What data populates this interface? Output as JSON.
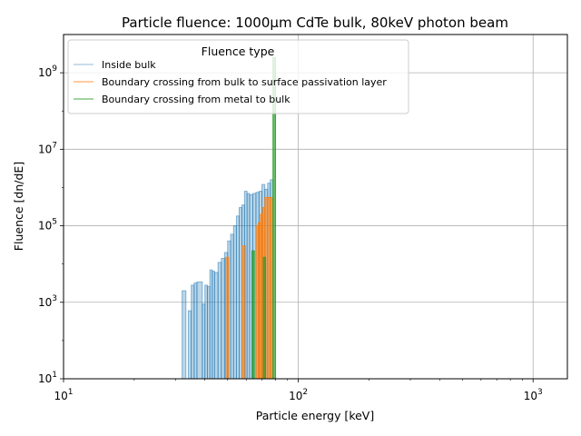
{
  "chart_data": {
    "type": "histogram",
    "title": "Particle fluence: 1000μm CdTe bulk, 80keV photon beam",
    "xlabel": "Particle energy [keV]",
    "ylabel": "Fluence [dn/dE]",
    "xscale": "log",
    "yscale": "log",
    "xlim": [
      10,
      1400
    ],
    "ylim": [
      10,
      10000000000
    ],
    "grid": true,
    "x_ticks": [
      {
        "value": 10,
        "base": "10",
        "exp": "1"
      },
      {
        "value": 100,
        "base": "10",
        "exp": "2"
      },
      {
        "value": 1000,
        "base": "10",
        "exp": "3"
      }
    ],
    "y_ticks": [
      {
        "value": 10,
        "base": "10",
        "exp": "1"
      },
      {
        "value": 1000,
        "base": "10",
        "exp": "3"
      },
      {
        "value": 100000,
        "base": "10",
        "exp": "5"
      },
      {
        "value": 10000000,
        "base": "10",
        "exp": "7"
      },
      {
        "value": 1000000000,
        "base": "10",
        "exp": "9"
      }
    ],
    "legend": {
      "title": "Fluence type",
      "placement": "upper left"
    },
    "series": [
      {
        "name": "Inside bulk",
        "color": "#1f77b4",
        "fill_opacity": 0.3,
        "stroke_opacity": 0.5,
        "bins": [
          [
            32.0,
            33.2,
            2000
          ],
          [
            34.0,
            35.0,
            600
          ],
          [
            35.0,
            36.0,
            2800
          ],
          [
            36.0,
            37.0,
            3200
          ],
          [
            37.0,
            39.0,
            3400
          ],
          [
            39.0,
            40.0,
            900
          ],
          [
            40.0,
            41.0,
            2800
          ],
          [
            41.0,
            42.0,
            2600
          ],
          [
            42.0,
            43.0,
            7000
          ],
          [
            43.0,
            44.0,
            6500
          ],
          [
            44.0,
            45.5,
            6000
          ],
          [
            45.5,
            47.0,
            11000
          ],
          [
            47.0,
            48.5,
            14000
          ],
          [
            48.5,
            50.0,
            20000
          ],
          [
            50.0,
            51.5,
            40000
          ],
          [
            51.5,
            53.0,
            60000
          ],
          [
            53.0,
            54.5,
            100000
          ],
          [
            54.5,
            56.0,
            180000
          ],
          [
            56.0,
            57.5,
            300000
          ],
          [
            57.5,
            59.0,
            350000
          ],
          [
            59.0,
            60.5,
            800000
          ],
          [
            60.5,
            62.0,
            700000
          ],
          [
            62.0,
            64.0,
            650000
          ],
          [
            64.0,
            66.0,
            700000
          ],
          [
            66.0,
            68.0,
            750000
          ],
          [
            68.0,
            70.0,
            800000
          ],
          [
            70.0,
            72.0,
            1200000
          ],
          [
            72.0,
            74.0,
            900000
          ],
          [
            74.0,
            76.0,
            1300000
          ],
          [
            76.0,
            78.0,
            1600000
          ]
        ]
      },
      {
        "name": "Boundary crossing from bulk to surface passivation layer",
        "color": "#ff7f0e",
        "fill_opacity": 0.6,
        "stroke_opacity": 0.8,
        "bins": [
          [
            49.0,
            50.5,
            15000
          ],
          [
            57.5,
            59.5,
            30000
          ],
          [
            66.0,
            67.5,
            100000
          ],
          [
            67.5,
            69.0,
            120000
          ],
          [
            69.0,
            70.5,
            200000
          ],
          [
            70.5,
            72.0,
            300000
          ],
          [
            72.0,
            74.0,
            550000
          ],
          [
            74.0,
            76.0,
            550000
          ],
          [
            76.0,
            78.0,
            550000
          ]
        ]
      },
      {
        "name": "Boundary crossing from metal to bulk",
        "color": "#2ca02c",
        "fill_opacity": 0.7,
        "stroke_opacity": 0.9,
        "bins": [
          [
            63.5,
            65.0,
            22000
          ],
          [
            71.0,
            72.5,
            15000
          ],
          [
            78.0,
            80.0,
            2500000000
          ]
        ]
      }
    ]
  }
}
